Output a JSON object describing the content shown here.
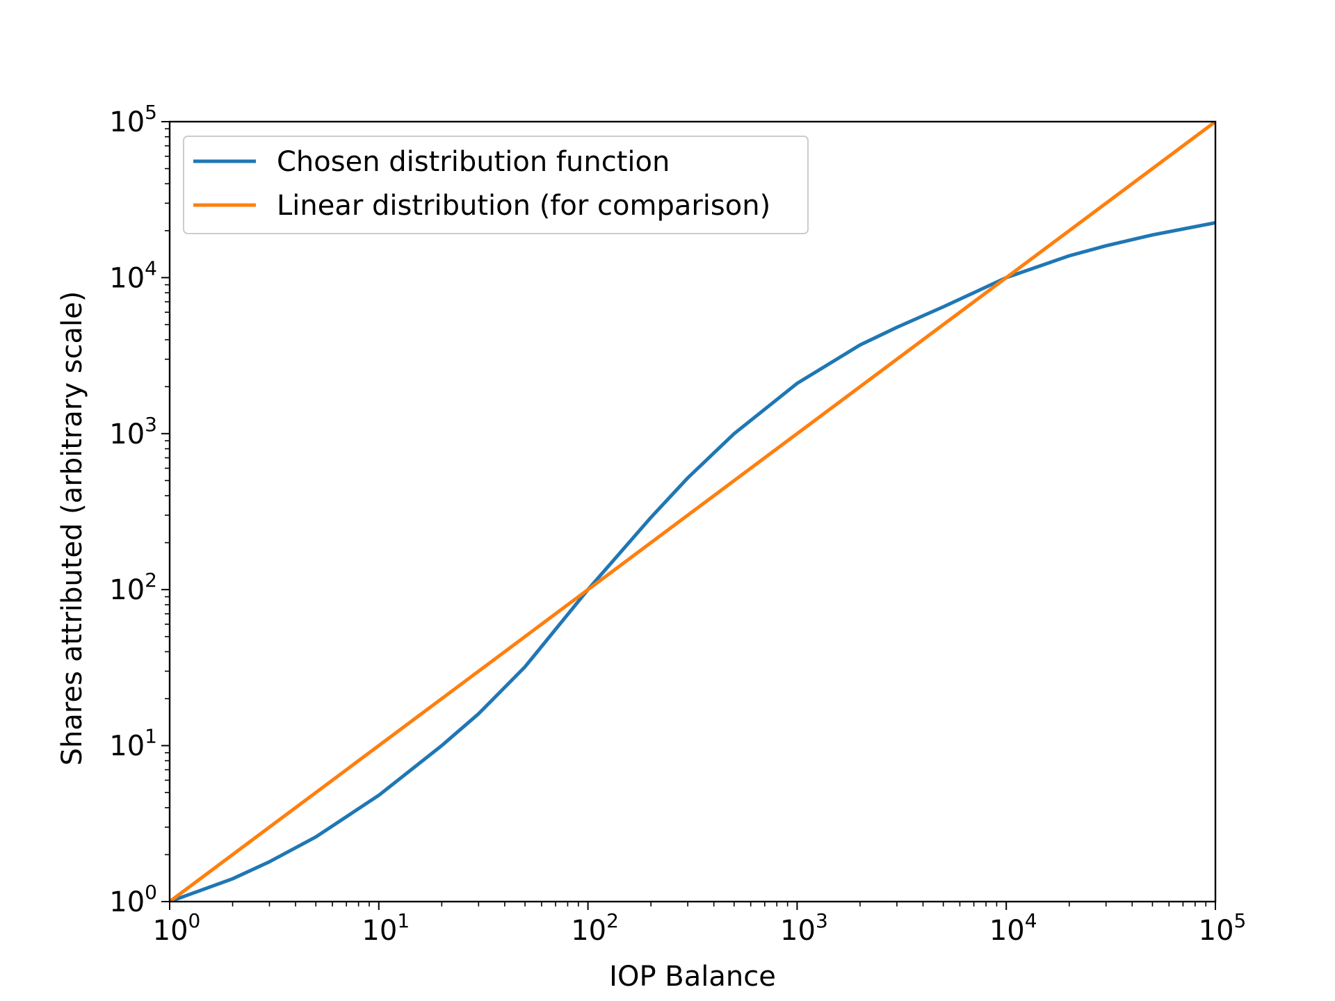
{
  "chart_data": {
    "type": "line",
    "title": "",
    "xlabel": "IOP Balance",
    "ylabel": "Shares attributed (arbitrary scale)",
    "xscale": "log",
    "yscale": "log",
    "xlim": [
      1,
      100000
    ],
    "ylim": [
      1,
      100000
    ],
    "grid": false,
    "legend_position": "top-left",
    "x_ticks": [
      {
        "base": "10",
        "exp": "0",
        "value": 1
      },
      {
        "base": "10",
        "exp": "1",
        "value": 10
      },
      {
        "base": "10",
        "exp": "2",
        "value": 100
      },
      {
        "base": "10",
        "exp": "3",
        "value": 1000
      },
      {
        "base": "10",
        "exp": "4",
        "value": 10000
      },
      {
        "base": "10",
        "exp": "5",
        "value": 100000
      }
    ],
    "y_ticks": [
      {
        "base": "10",
        "exp": "0",
        "value": 1
      },
      {
        "base": "10",
        "exp": "1",
        "value": 10
      },
      {
        "base": "10",
        "exp": "2",
        "value": 100
      },
      {
        "base": "10",
        "exp": "3",
        "value": 1000
      },
      {
        "base": "10",
        "exp": "4",
        "value": 10000
      },
      {
        "base": "10",
        "exp": "5",
        "value": 100000
      }
    ],
    "series": [
      {
        "name": "Chosen distribution function",
        "color": "#1f77b4",
        "x": [
          1,
          2,
          3,
          5,
          10,
          20,
          30,
          50,
          100,
          200,
          300,
          500,
          1000,
          2000,
          3000,
          5000,
          10000,
          20000,
          30000,
          50000,
          100000
        ],
        "y": [
          1,
          1.4,
          1.8,
          2.6,
          4.8,
          10,
          16,
          32,
          100,
          290,
          520,
          1000,
          2100,
          3700,
          4800,
          6500,
          10000,
          13800,
          16000,
          18800,
          22500
        ]
      },
      {
        "name": "Linear distribution (for comparison)",
        "color": "#ff7f0e",
        "x": [
          1,
          100000
        ],
        "y": [
          1,
          100000
        ]
      }
    ]
  }
}
